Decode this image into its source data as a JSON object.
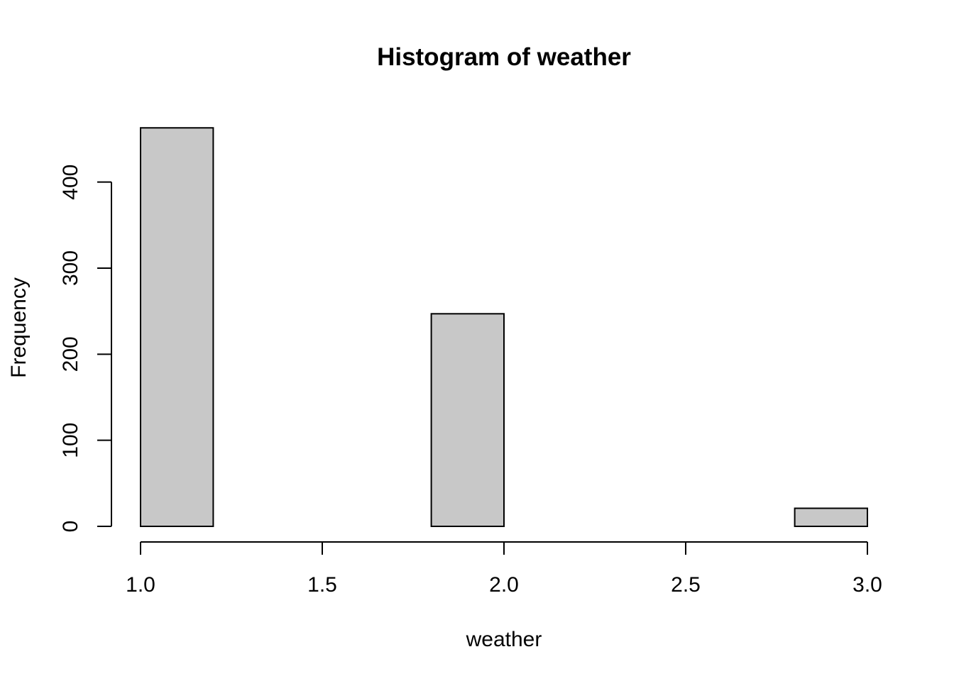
{
  "chart_data": {
    "type": "bar",
    "subtype": "histogram",
    "title": "Histogram of weather",
    "xlabel": "weather",
    "ylabel": "Frequency",
    "bins": [
      {
        "start": 1.0,
        "end": 1.2,
        "count": 463
      },
      {
        "start": 1.2,
        "end": 1.4,
        "count": 0
      },
      {
        "start": 1.4,
        "end": 1.6,
        "count": 0
      },
      {
        "start": 1.6,
        "end": 1.8,
        "count": 0
      },
      {
        "start": 1.8,
        "end": 2.0,
        "count": 247
      },
      {
        "start": 2.0,
        "end": 2.2,
        "count": 0
      },
      {
        "start": 2.2,
        "end": 2.4,
        "count": 0
      },
      {
        "start": 2.4,
        "end": 2.6,
        "count": 0
      },
      {
        "start": 2.6,
        "end": 2.8,
        "count": 0
      },
      {
        "start": 2.8,
        "end": 3.0,
        "count": 21
      }
    ],
    "xlim": [
      1.0,
      3.0
    ],
    "ylim": [
      0,
      463
    ],
    "x_ticks": [
      1.0,
      1.5,
      2.0,
      2.5,
      3.0
    ],
    "x_tick_labels": [
      "1.0",
      "1.5",
      "2.0",
      "2.5",
      "3.0"
    ],
    "y_ticks": [
      0,
      100,
      200,
      300,
      400
    ],
    "y_tick_labels": [
      "0",
      "100",
      "200",
      "300",
      "400"
    ],
    "bar_color": "#c8c8c8",
    "bar_border_color": "#000000",
    "grid": false,
    "legend": "none"
  }
}
